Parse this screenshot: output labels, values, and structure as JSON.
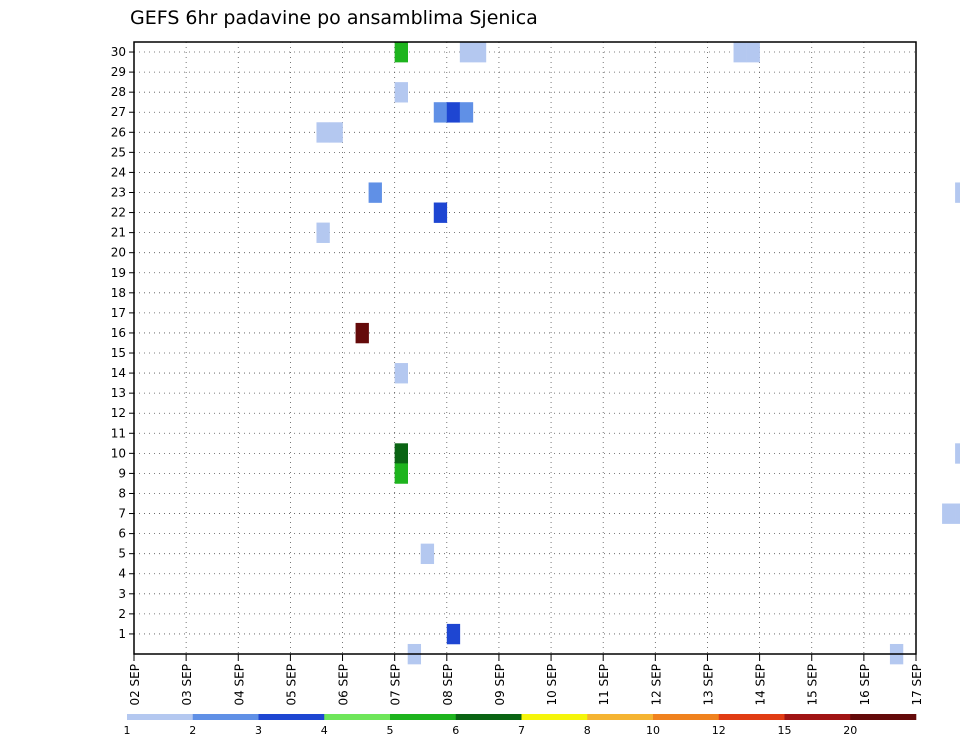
{
  "chart_data": {
    "type": "heatmap",
    "title": "GEFS 6hr padavine po ansamblima Sjenica",
    "xlabel": "",
    "ylabel": "",
    "x_tick_labels": [
      "02 SEP",
      "03 SEP",
      "04 SEP",
      "05 SEP",
      "06 SEP",
      "07 SEP",
      "08 SEP",
      "09 SEP",
      "10 SEP",
      "11 SEP",
      "12 SEP",
      "13 SEP",
      "14 SEP",
      "15 SEP",
      "16 SEP",
      "17 SEP"
    ],
    "y_tick_labels": [
      "1",
      "2",
      "3",
      "4",
      "5",
      "6",
      "7",
      "8",
      "9",
      "10",
      "11",
      "12",
      "13",
      "14",
      "15",
      "16",
      "17",
      "18",
      "19",
      "20",
      "21",
      "22",
      "23",
      "24",
      "25",
      "26",
      "27",
      "28",
      "29",
      "30"
    ],
    "x_range_days": [
      0,
      15
    ],
    "y_range": [
      0,
      30
    ],
    "steps_per_day": 4,
    "grid": "dotted",
    "colorbar": {
      "placement": "bottom",
      "labels": [
        "1",
        "2",
        "3",
        "4",
        "5",
        "6",
        "7",
        "8",
        "10",
        "12",
        "15",
        "20"
      ],
      "colors": [
        "#b4c8f0",
        "#6090e6",
        "#1e46d2",
        "#6ee65a",
        "#1eb41e",
        "#0a6414",
        "#f5f50a",
        "#f5b432",
        "#f0821e",
        "#e13c14",
        "#a01414",
        "#640a0a"
      ]
    },
    "units": "mm (6h)",
    "cells": [
      [
        30,
        46,
        1
      ],
      [
        30,
        47,
        1
      ],
      [
        30,
        92,
        3
      ],
      [
        30,
        93,
        1
      ],
      [
        30,
        94,
        1
      ],
      [
        30,
        95,
        1
      ],
      [
        30,
        96,
        1
      ],
      [
        30,
        97,
        11
      ],
      [
        30,
        98,
        2
      ],
      [
        30,
        118,
        3
      ],
      [
        30,
        119,
        1
      ],
      [
        30,
        20,
        5
      ],
      [
        30,
        25,
        1
      ],
      [
        30,
        26,
        1
      ],
      [
        30,
        76,
        1
      ],
      [
        29,
        76,
        2
      ],
      [
        29,
        89,
        5
      ],
      [
        29,
        90,
        9
      ],
      [
        29,
        94,
        2
      ],
      [
        29,
        95,
        5
      ],
      [
        29,
        104,
        1
      ],
      [
        29,
        119,
        2
      ],
      [
        28,
        20,
        1
      ],
      [
        28,
        92,
        2
      ],
      [
        28,
        96,
        2
      ],
      [
        27,
        23,
        2
      ],
      [
        27,
        24,
        3
      ],
      [
        27,
        25,
        2
      ],
      [
        27,
        82,
        1
      ],
      [
        27,
        87,
        1
      ],
      [
        27,
        120,
        1
      ],
      [
        26,
        14,
        1
      ],
      [
        26,
        15,
        1
      ],
      [
        25,
        115,
        1
      ],
      [
        25,
        116,
        7
      ],
      [
        24,
        76,
        2
      ],
      [
        24,
        77,
        2
      ],
      [
        24,
        89,
        5
      ],
      [
        24,
        90,
        6
      ],
      [
        24,
        91,
        1
      ],
      [
        23,
        18,
        2
      ],
      [
        23,
        63,
        1
      ],
      [
        23,
        64,
        5
      ],
      [
        23,
        65,
        3
      ],
      [
        23,
        85,
        1
      ],
      [
        22,
        23,
        3
      ],
      [
        22,
        72,
        2
      ],
      [
        22,
        109,
        1
      ],
      [
        22,
        110,
        7
      ],
      [
        22,
        111,
        3
      ],
      [
        22,
        112,
        1
      ],
      [
        22,
        123,
        1
      ],
      [
        22,
        120,
        1
      ],
      [
        21,
        14,
        1
      ],
      [
        21,
        76,
        1
      ],
      [
        21,
        77,
        3
      ],
      [
        21,
        78,
        1
      ],
      [
        21,
        89,
        1
      ],
      [
        21,
        90,
        7
      ],
      [
        21,
        91,
        8
      ],
      [
        21,
        92,
        12
      ],
      [
        21,
        93,
        10
      ],
      [
        21,
        94,
        6
      ],
      [
        21,
        95,
        6
      ],
      [
        21,
        96,
        6
      ],
      [
        21,
        97,
        5
      ],
      [
        21,
        113,
        1
      ],
      [
        20,
        115,
        1
      ],
      [
        20,
        119,
        3
      ],
      [
        20,
        120,
        2
      ],
      [
        20,
        121,
        6
      ],
      [
        20,
        122,
        3
      ],
      [
        19,
        64,
        3
      ],
      [
        19,
        65,
        2
      ],
      [
        19,
        66,
        1
      ],
      [
        19,
        69,
        2
      ],
      [
        19,
        70,
        5
      ],
      [
        19,
        71,
        1
      ],
      [
        19,
        72,
        3
      ],
      [
        19,
        73,
        3
      ],
      [
        19,
        90,
        1
      ],
      [
        19,
        95,
        2
      ],
      [
        19,
        96,
        2
      ],
      [
        19,
        99,
        6
      ],
      [
        19,
        100,
        3
      ],
      [
        19,
        118,
        1
      ],
      [
        19,
        119,
        3
      ],
      [
        18,
        114,
        2
      ],
      [
        18,
        115,
        6
      ],
      [
        18,
        116,
        3
      ],
      [
        18,
        117,
        3
      ],
      [
        17,
        111,
        4
      ],
      [
        17,
        112,
        4
      ],
      [
        17,
        113,
        1
      ],
      [
        17,
        114,
        3
      ],
      [
        17,
        115,
        6
      ],
      [
        17,
        116,
        1
      ],
      [
        17,
        117,
        2
      ],
      [
        17,
        120,
        1
      ],
      [
        17,
        121,
        1
      ],
      [
        16,
        17,
        12
      ],
      [
        16,
        88,
        3
      ],
      [
        16,
        89,
        1
      ],
      [
        15,
        76,
        3
      ],
      [
        15,
        77,
        7
      ],
      [
        15,
        78,
        2
      ],
      [
        15,
        112,
        1
      ],
      [
        14,
        20,
        1
      ],
      [
        14,
        114,
        1
      ],
      [
        13,
        92,
        1
      ],
      [
        13,
        93,
        2
      ],
      [
        13,
        94,
        1
      ],
      [
        12,
        89,
        2
      ],
      [
        12,
        90,
        6
      ],
      [
        12,
        91,
        2
      ],
      [
        12,
        92,
        7
      ],
      [
        12,
        96,
        1
      ],
      [
        12,
        97,
        1
      ],
      [
        12,
        98,
        1
      ],
      [
        12,
        99,
        1
      ],
      [
        12,
        100,
        3
      ],
      [
        12,
        102,
        3
      ],
      [
        12,
        103,
        1
      ],
      [
        12,
        104,
        1
      ],
      [
        12,
        105,
        4
      ],
      [
        12,
        106,
        1
      ],
      [
        12,
        115,
        2
      ],
      [
        12,
        116,
        1
      ],
      [
        11,
        93,
        1
      ],
      [
        11,
        110,
        1
      ],
      [
        11,
        111,
        6
      ],
      [
        11,
        112,
        5
      ],
      [
        11,
        113,
        1
      ],
      [
        10,
        20,
        6
      ],
      [
        10,
        63,
        1
      ],
      [
        10,
        69,
        1
      ],
      [
        10,
        70,
        2
      ],
      [
        10,
        76,
        3
      ],
      [
        10,
        77,
        5
      ],
      [
        10,
        78,
        6
      ],
      [
        10,
        111,
        1
      ],
      [
        10,
        112,
        7
      ],
      [
        10,
        113,
        3
      ],
      [
        10,
        116,
        2
      ],
      [
        9,
        20,
        5
      ],
      [
        9,
        73,
        1
      ],
      [
        9,
        76,
        7
      ],
      [
        9,
        77,
        3
      ],
      [
        8,
        67,
        1
      ],
      [
        8,
        72,
        1
      ],
      [
        8,
        73,
        3
      ],
      [
        8,
        78,
        1
      ],
      [
        8,
        88,
        3
      ],
      [
        8,
        93,
        1
      ],
      [
        8,
        106,
        2
      ],
      [
        8,
        107,
        1
      ],
      [
        8,
        111,
        1
      ],
      [
        8,
        112,
        3
      ],
      [
        8,
        120,
        6
      ],
      [
        7,
        62,
        1
      ],
      [
        7,
        63,
        1
      ],
      [
        7,
        73,
        3
      ],
      [
        7,
        88,
        1
      ],
      [
        7,
        93,
        1
      ],
      [
        7,
        112,
        2
      ],
      [
        6,
        72,
        3
      ],
      [
        6,
        78,
        1
      ],
      [
        6,
        88,
        4
      ],
      [
        6,
        91,
        3
      ],
      [
        6,
        92,
        5
      ],
      [
        6,
        94,
        1
      ],
      [
        6,
        95,
        3
      ],
      [
        6,
        96,
        5
      ],
      [
        6,
        97,
        6
      ],
      [
        6,
        98,
        1
      ],
      [
        6,
        106,
        2
      ],
      [
        6,
        107,
        5
      ],
      [
        6,
        108,
        1
      ],
      [
        5,
        22,
        1
      ],
      [
        5,
        71,
        1
      ],
      [
        5,
        72,
        3
      ],
      [
        5,
        76,
        6
      ],
      [
        5,
        77,
        9
      ],
      [
        5,
        78,
        1
      ],
      [
        5,
        80,
        2
      ],
      [
        5,
        81,
        7
      ],
      [
        4,
        80,
        1
      ],
      [
        3,
        76,
        3
      ],
      [
        3,
        77,
        3
      ],
      [
        3,
        78,
        2
      ],
      [
        3,
        80,
        1
      ],
      [
        3,
        81,
        3
      ],
      [
        3,
        82,
        3
      ],
      [
        3,
        85,
        7
      ],
      [
        3,
        86,
        3
      ],
      [
        3,
        89,
        3
      ],
      [
        3,
        90,
        2
      ],
      [
        2,
        69,
        5
      ],
      [
        2,
        70,
        6
      ],
      [
        2,
        71,
        5
      ],
      [
        2,
        75,
        1
      ],
      [
        2,
        77,
        7
      ],
      [
        2,
        81,
        2
      ],
      [
        1,
        24,
        3
      ],
      [
        1,
        70,
        1
      ],
      [
        1,
        75,
        5
      ],
      [
        1,
        80,
        2
      ],
      [
        1,
        81,
        7
      ],
      [
        1,
        82,
        2
      ],
      [
        0,
        21,
        1
      ],
      [
        0,
        58,
        1
      ],
      [
        0,
        66,
        5
      ]
    ]
  }
}
